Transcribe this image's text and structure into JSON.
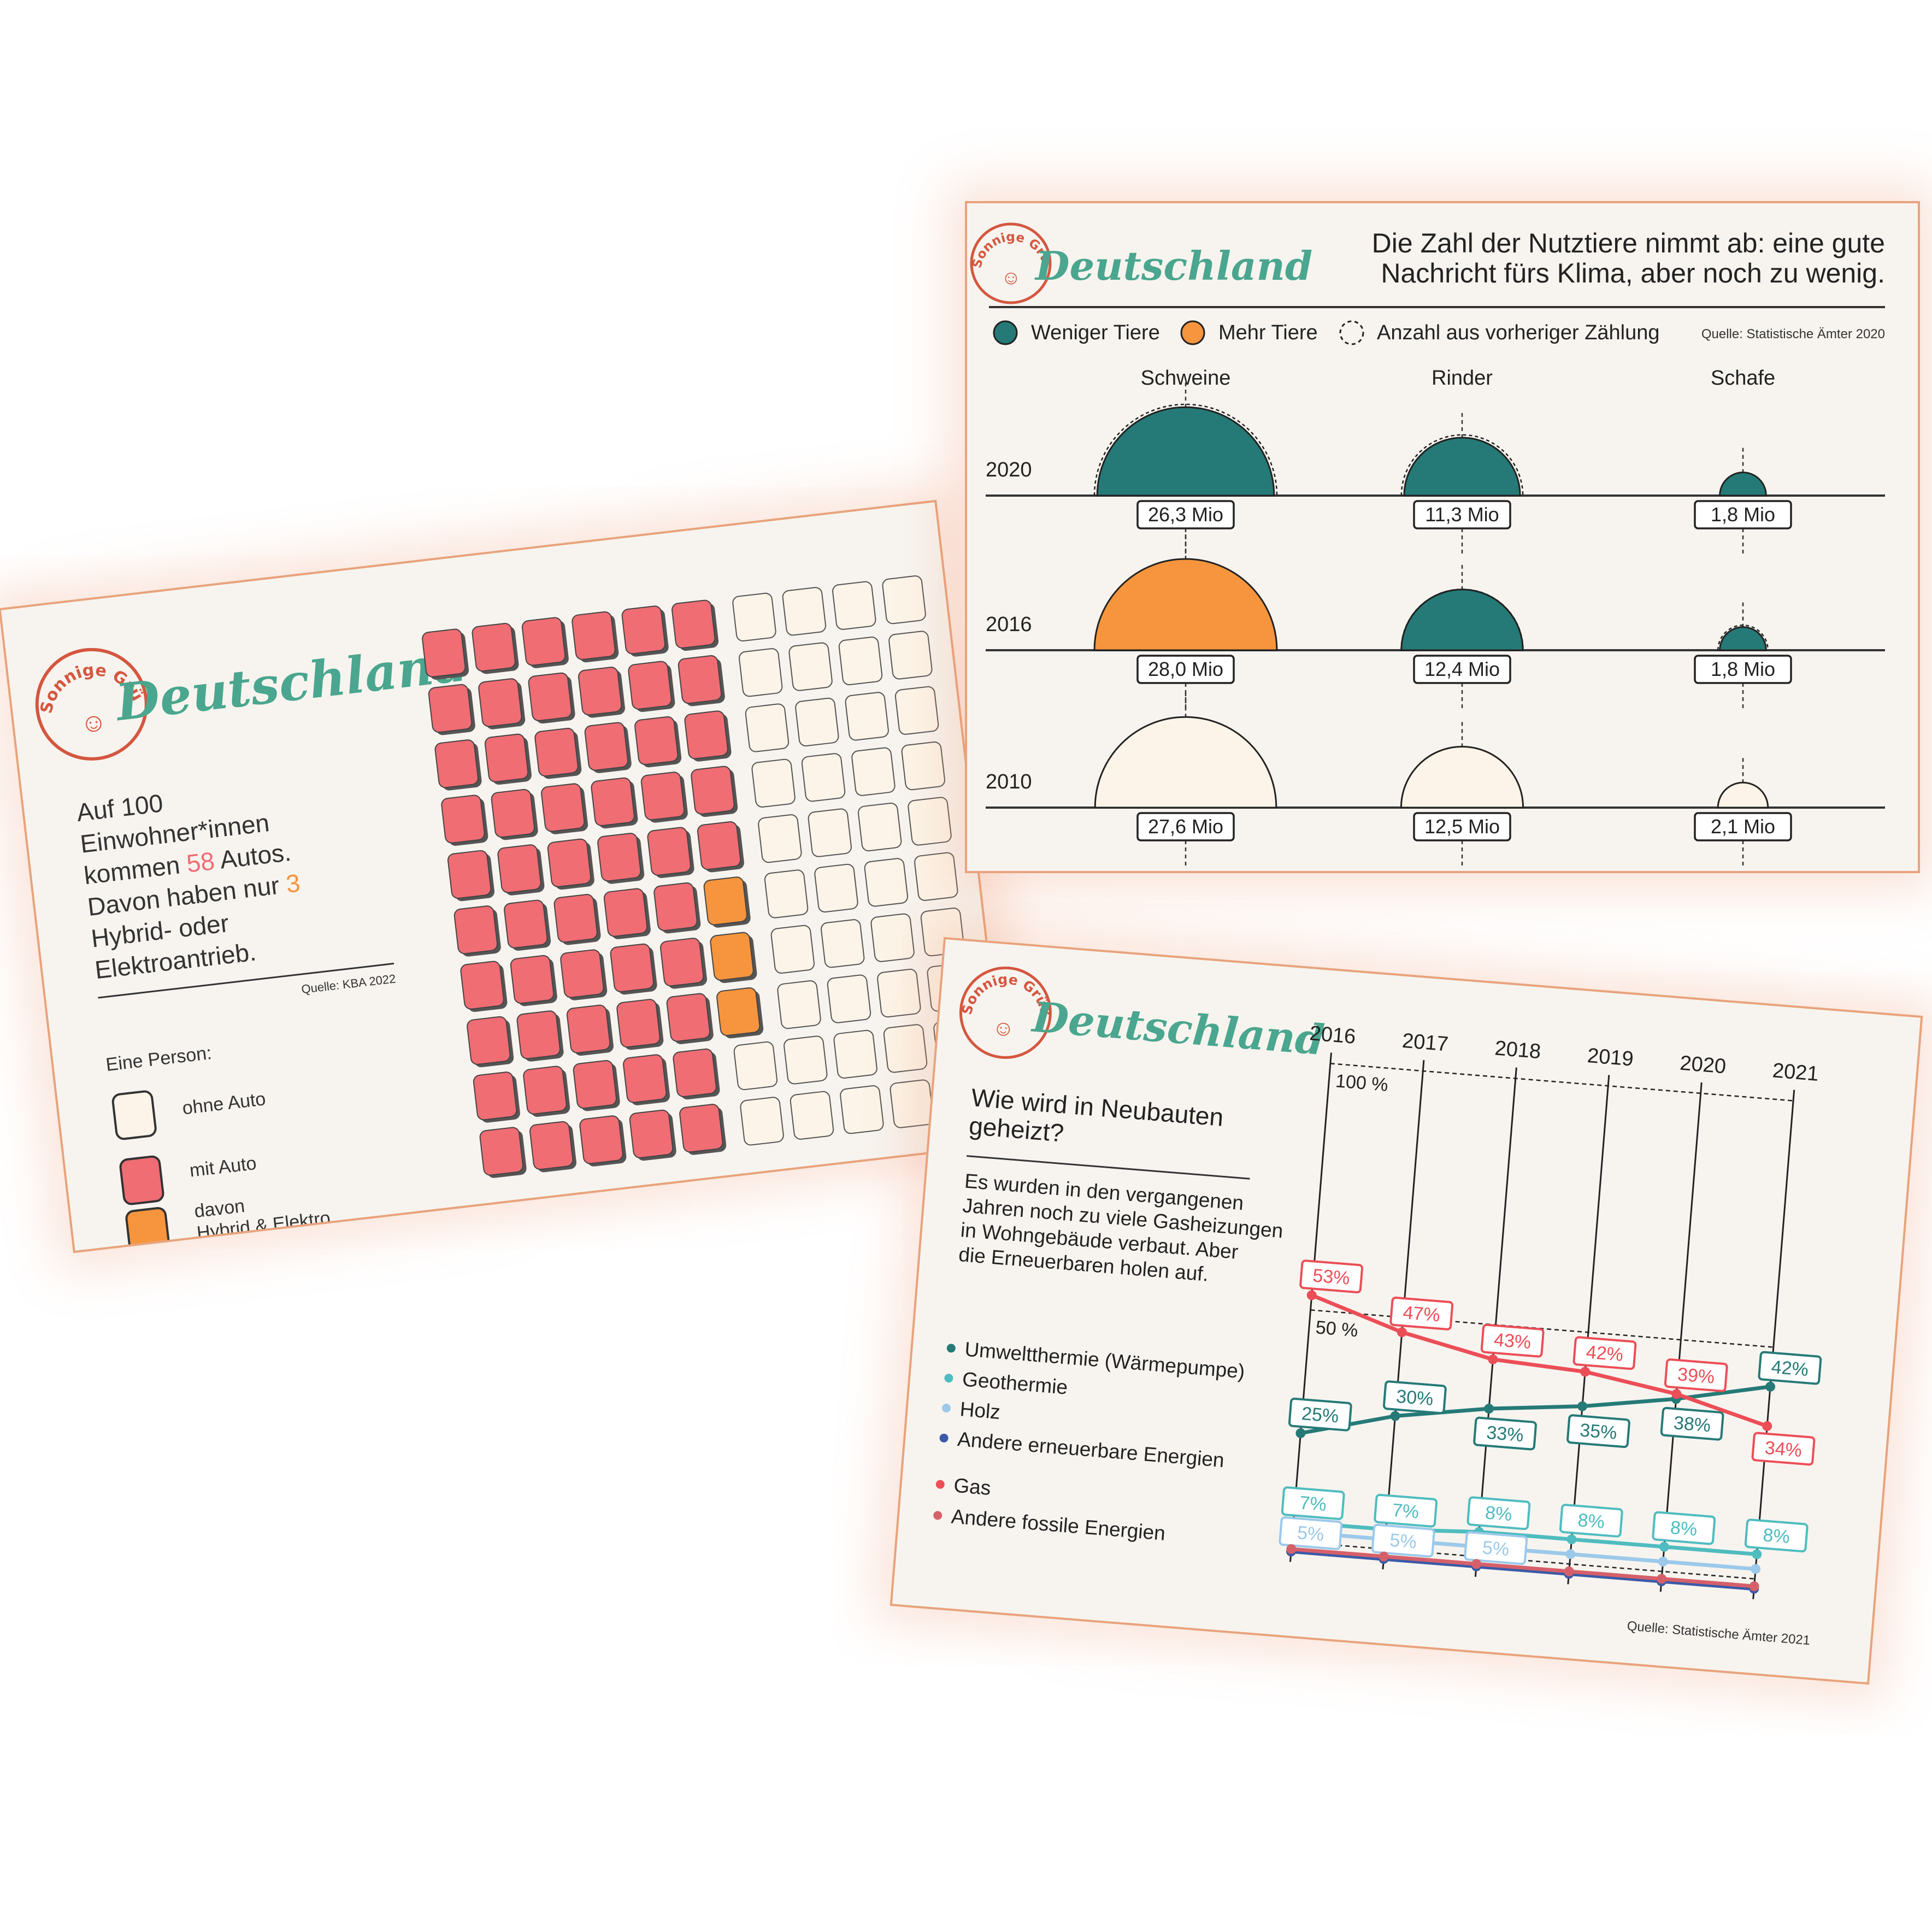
{
  "brand": {
    "stamp_text": "Sonnige Grüße aus",
    "name": "Deutschland"
  },
  "colors": {
    "teal": "#257a77",
    "orange": "#f6953d",
    "red": "#f06d74",
    "cream": "#fcf4e8",
    "brand_red": "#d4573f",
    "gas": "#ec4e57",
    "geothermie": "#4fbcbf",
    "holz": "#9cc9ea",
    "andere_erneuerbare": "#3b5aa8",
    "andere_fossile": "#d5606a"
  },
  "card_cars": {
    "headline": {
      "l1": "Auf 100",
      "l2": "Einwohner*innen",
      "l3a": "kommen ",
      "l3num": "58",
      "l3b": " Autos.",
      "l4a": "Davon haben nur ",
      "l4num": "3",
      "l5": "Hybrid- oder",
      "l6": "Elektroantrieb."
    },
    "source": "Quelle: KBA 2022",
    "legend_title": "Eine Person:",
    "legend": {
      "ohne": "ohne Auto",
      "mit": "mit Auto",
      "davon1": "davon",
      "davon2": "Hybrid & Elektro"
    }
  },
  "card_animals": {
    "title_l1": "Die Zahl der Nutztiere nimmt ab: eine gute",
    "title_l2": "Nachricht fürs Klima, aber noch zu wenig.",
    "legend": {
      "weniger": "Weniger Tiere",
      "mehr": "Mehr Tiere",
      "vorher": "Anzahl aus vorheriger Zählung"
    },
    "source": "Quelle: Statistische Ämter 2020"
  },
  "card_heating": {
    "title_l1": "Wie wird in Neubauten",
    "title_l2": "geheizt?",
    "text_l1": "Es wurden in den vergangenen",
    "text_l2": "Jahren noch zu viele Gasheizungen",
    "text_l3": "in Wohngebäude verbaut. Aber",
    "text_l4": "die Erneuerbaren holen auf.",
    "legend": {
      "umwelt": "Umweltthermie (Wärmepumpe)",
      "geo": "Geothermie",
      "holz": "Holz",
      "andere_ern": "Andere erneuerbare Energien",
      "gas": "Gas",
      "andere_fos": "Andere fossile Energien"
    },
    "gridline_100": "100 %",
    "gridline_50": "50 %",
    "source": "Quelle: Statistische Ämter 2021"
  },
  "chart_data": [
    {
      "type": "waffle",
      "total": 100,
      "categories": [
        "ohne Auto",
        "mit Auto",
        "davon Hybrid & Elektro"
      ],
      "values": [
        42,
        58,
        3
      ]
    },
    {
      "type": "semicircle",
      "rows": [
        "2020",
        "2016",
        "2010"
      ],
      "columns": [
        "Schweine",
        "Rinder",
        "Schafe"
      ],
      "labels": {
        "2020": [
          "26,3 Mio",
          "11,3 Mio",
          "1,8 Mio"
        ],
        "2016": [
          "28,0 Mio",
          "12,4 Mio",
          "1,8 Mio"
        ],
        "2010": [
          "27,6 Mio",
          "12,5 Mio",
          "2,1 Mio"
        ]
      },
      "values": {
        "2020": [
          26.3,
          11.3,
          1.8
        ],
        "2016": [
          28.0,
          12.4,
          1.8
        ],
        "2010": [
          27.6,
          12.5,
          2.1
        ]
      }
    },
    {
      "type": "line",
      "x": [
        "2016",
        "2017",
        "2018",
        "2019",
        "2020",
        "2021"
      ],
      "ylim": [
        0,
        100
      ],
      "series": [
        {
          "name": "Umweltthermie (Wärmepumpe)",
          "values": [
            25,
            30,
            33,
            35,
            38,
            42
          ],
          "labels": [
            "25%",
            "30%",
            "33%",
            "35%",
            "38%",
            "42%"
          ]
        },
        {
          "name": "Geothermie",
          "values": [
            7,
            7,
            8,
            8,
            8,
            8
          ],
          "labels": [
            "7%",
            "7%",
            "8%",
            "8%",
            "8%",
            "8%"
          ]
        },
        {
          "name": "Holz",
          "values": [
            5,
            5,
            5,
            5,
            5,
            5
          ],
          "labels": [
            "5%",
            "5%",
            "5%"
          ]
        },
        {
          "name": "Andere erneuerbare Energien",
          "values": [
            1,
            1,
            1,
            1,
            1,
            1
          ]
        },
        {
          "name": "Gas",
          "values": [
            53,
            47,
            43,
            42,
            39,
            34
          ],
          "labels": [
            "53%",
            "47%",
            "43%",
            "42%",
            "39%",
            "34%"
          ]
        },
        {
          "name": "Andere fossile Energien",
          "values": [
            1,
            1,
            1,
            1,
            1,
            1
          ]
        }
      ]
    }
  ]
}
